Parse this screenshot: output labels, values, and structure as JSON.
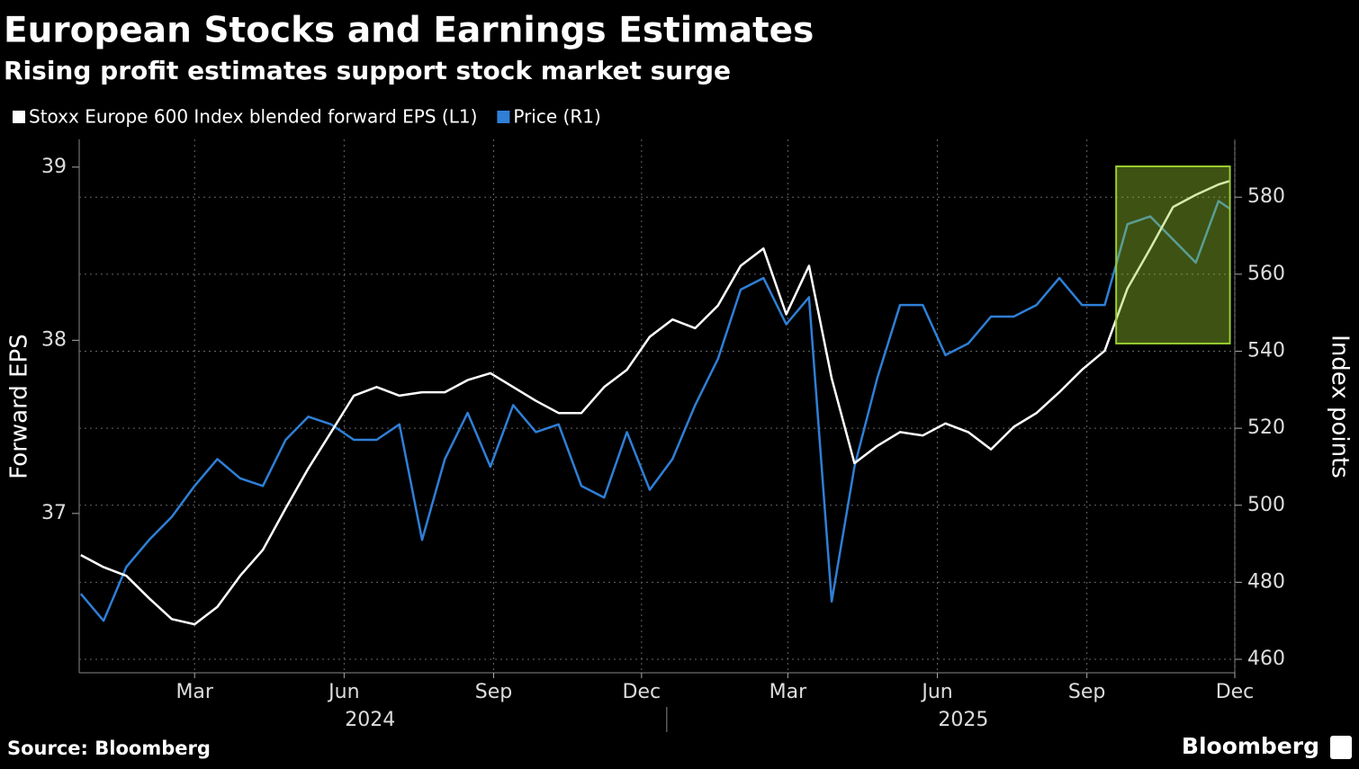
{
  "chart_data": {
    "type": "line",
    "title": "European Stocks and Earnings Estimates",
    "subtitle": "Rising profit estimates support stock market surge",
    "y_label": "Forward EPS",
    "y2_label": "Index points",
    "source": "Source: Bloomberg",
    "brand": "Bloomberg",
    "x": [
      "2024-01-05",
      "2024-01-19",
      "2024-02-02",
      "2024-02-16",
      "2024-03-01",
      "2024-03-15",
      "2024-03-29",
      "2024-04-12",
      "2024-04-26",
      "2024-05-10",
      "2024-05-24",
      "2024-06-07",
      "2024-06-21",
      "2024-07-05",
      "2024-07-19",
      "2024-08-02",
      "2024-08-16",
      "2024-08-30",
      "2024-09-13",
      "2024-09-27",
      "2024-10-11",
      "2024-10-25",
      "2024-11-08",
      "2024-11-22",
      "2024-12-06",
      "2024-12-20",
      "2025-01-03",
      "2025-01-17",
      "2025-01-31",
      "2025-02-14",
      "2025-02-28",
      "2025-03-14",
      "2025-03-28",
      "2025-04-11",
      "2025-04-25",
      "2025-05-09",
      "2025-05-23",
      "2025-06-06",
      "2025-06-20",
      "2025-07-04",
      "2025-07-18",
      "2025-08-01",
      "2025-08-15",
      "2025-08-29",
      "2025-09-12",
      "2025-09-26",
      "2025-10-10",
      "2025-10-24",
      "2025-11-07",
      "2025-11-21",
      "2025-12-05",
      "2025-12-12"
    ],
    "series": [
      {
        "name": "Stoxx Europe 600 Index blended forward EPS (L1)",
        "color": "#ffffff",
        "axis": "y",
        "values": [
          36.76,
          36.69,
          36.64,
          36.51,
          36.39,
          36.36,
          36.46,
          36.64,
          36.79,
          37.03,
          37.26,
          37.47,
          37.68,
          37.73,
          37.68,
          37.7,
          37.7,
          37.77,
          37.81,
          37.73,
          37.65,
          37.58,
          37.58,
          37.73,
          37.83,
          38.02,
          38.12,
          38.07,
          38.2,
          38.43,
          38.53,
          38.15,
          38.43,
          37.78,
          37.29,
          37.39,
          37.47,
          37.45,
          37.52,
          37.47,
          37.37,
          37.5,
          37.58,
          37.7,
          37.83,
          37.94,
          38.3,
          38.53,
          38.77,
          38.84,
          38.9,
          38.92
        ]
      },
      {
        "name": "Price (R1)",
        "color": "#2f7fd6",
        "axis": "y2",
        "values": [
          477,
          470,
          484,
          491,
          497,
          505,
          512,
          507,
          505,
          517,
          523,
          521,
          517,
          517,
          521,
          491,
          512,
          524,
          510,
          526,
          519,
          521,
          505,
          502,
          519,
          504,
          512,
          526,
          538,
          556,
          559,
          547,
          554,
          475,
          510,
          533,
          552,
          552,
          539,
          542,
          549,
          549,
          552,
          559,
          552,
          552,
          573,
          575,
          569,
          563,
          579,
          577
        ]
      }
    ],
    "xlim": [
      "2024-01-04",
      "2025-12-15"
    ],
    "xticks": [
      {
        "value": "2024-03-15",
        "label": "Mar"
      },
      {
        "value": "2024-06-15",
        "label": "Jun"
      },
      {
        "value": "2024-09-15",
        "label": "Sep"
      },
      {
        "value": "2024-12-15",
        "label": "Dec"
      },
      {
        "value": "2025-03-15",
        "label": "Mar"
      },
      {
        "value": "2025-06-15",
        "label": "Jun"
      },
      {
        "value": "2025-09-15",
        "label": "Sep"
      },
      {
        "value": "2025-12-15",
        "label": "Dec"
      }
    ],
    "year_labels": [
      {
        "value": "2024-07-01",
        "label": "2024"
      },
      {
        "value": "2025-07-01",
        "label": "2025"
      }
    ],
    "ylim": [
      36.08,
      39.16
    ],
    "yticks": [
      37,
      38,
      39
    ],
    "y2lim": [
      456.5,
      595
    ],
    "y2ticks": [
      460,
      480,
      500,
      520,
      540,
      560,
      580
    ],
    "grid": true,
    "legend": "top-left",
    "highlight": {
      "x": [
        "2025-10-03",
        "2025-12-12"
      ],
      "y2": [
        542,
        588
      ],
      "color": "#9acd32"
    }
  }
}
